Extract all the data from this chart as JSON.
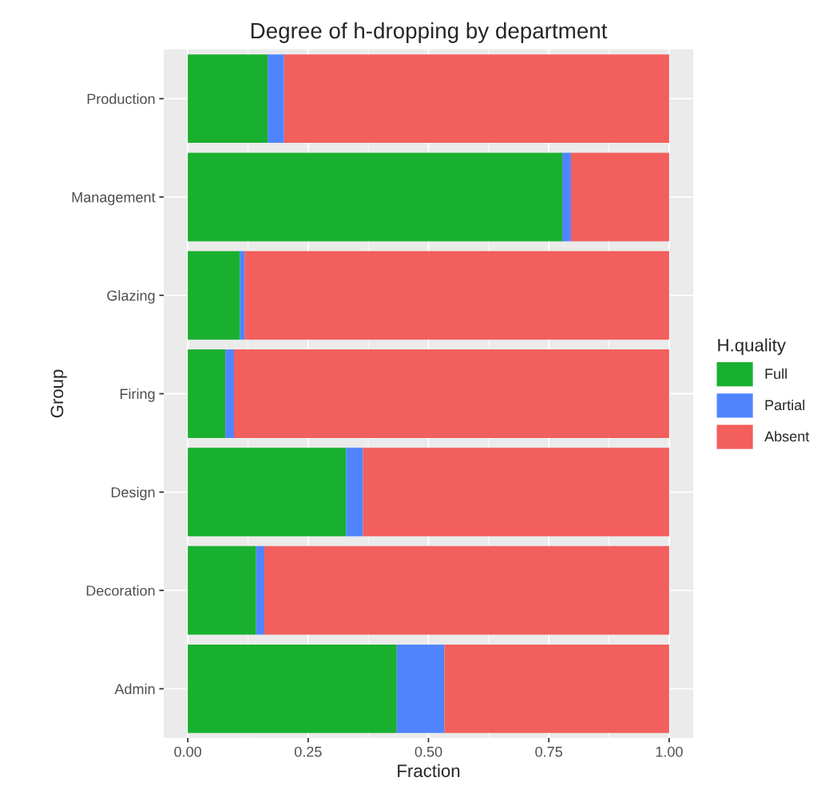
{
  "chart_data": {
    "type": "bar",
    "orientation": "horizontal",
    "stacked": true,
    "title": "Degree of h-dropping by department",
    "xlabel": "Fraction",
    "ylabel": "Group",
    "legend_title": "H.quality",
    "legend": "right",
    "grid": true,
    "categories": [
      "Production",
      "Management",
      "Glazing",
      "Firing",
      "Design",
      "Decoration",
      "Admin"
    ],
    "xlim": [
      -0.05,
      1.05
    ],
    "xticks": [
      {
        "value": 0,
        "label": "0.00"
      },
      {
        "value": 0.25,
        "label": "0.25"
      },
      {
        "value": 0.5,
        "label": "0.50"
      },
      {
        "value": 0.75,
        "label": "0.75"
      },
      {
        "value": 1,
        "label": "1.00"
      }
    ],
    "series": [
      {
        "name": "Full",
        "color": "#19b02f",
        "values": [
          0.166,
          0.778,
          0.108,
          0.078,
          0.329,
          0.142,
          0.434
        ]
      },
      {
        "name": "Partial",
        "color": "#5084ff",
        "values": [
          0.034,
          0.018,
          0.01,
          0.018,
          0.035,
          0.017,
          0.099
        ]
      },
      {
        "name": "Absent",
        "color": "#f25f5c",
        "values": [
          0.8,
          0.204,
          0.882,
          0.904,
          0.636,
          0.841,
          0.467
        ]
      }
    ]
  }
}
